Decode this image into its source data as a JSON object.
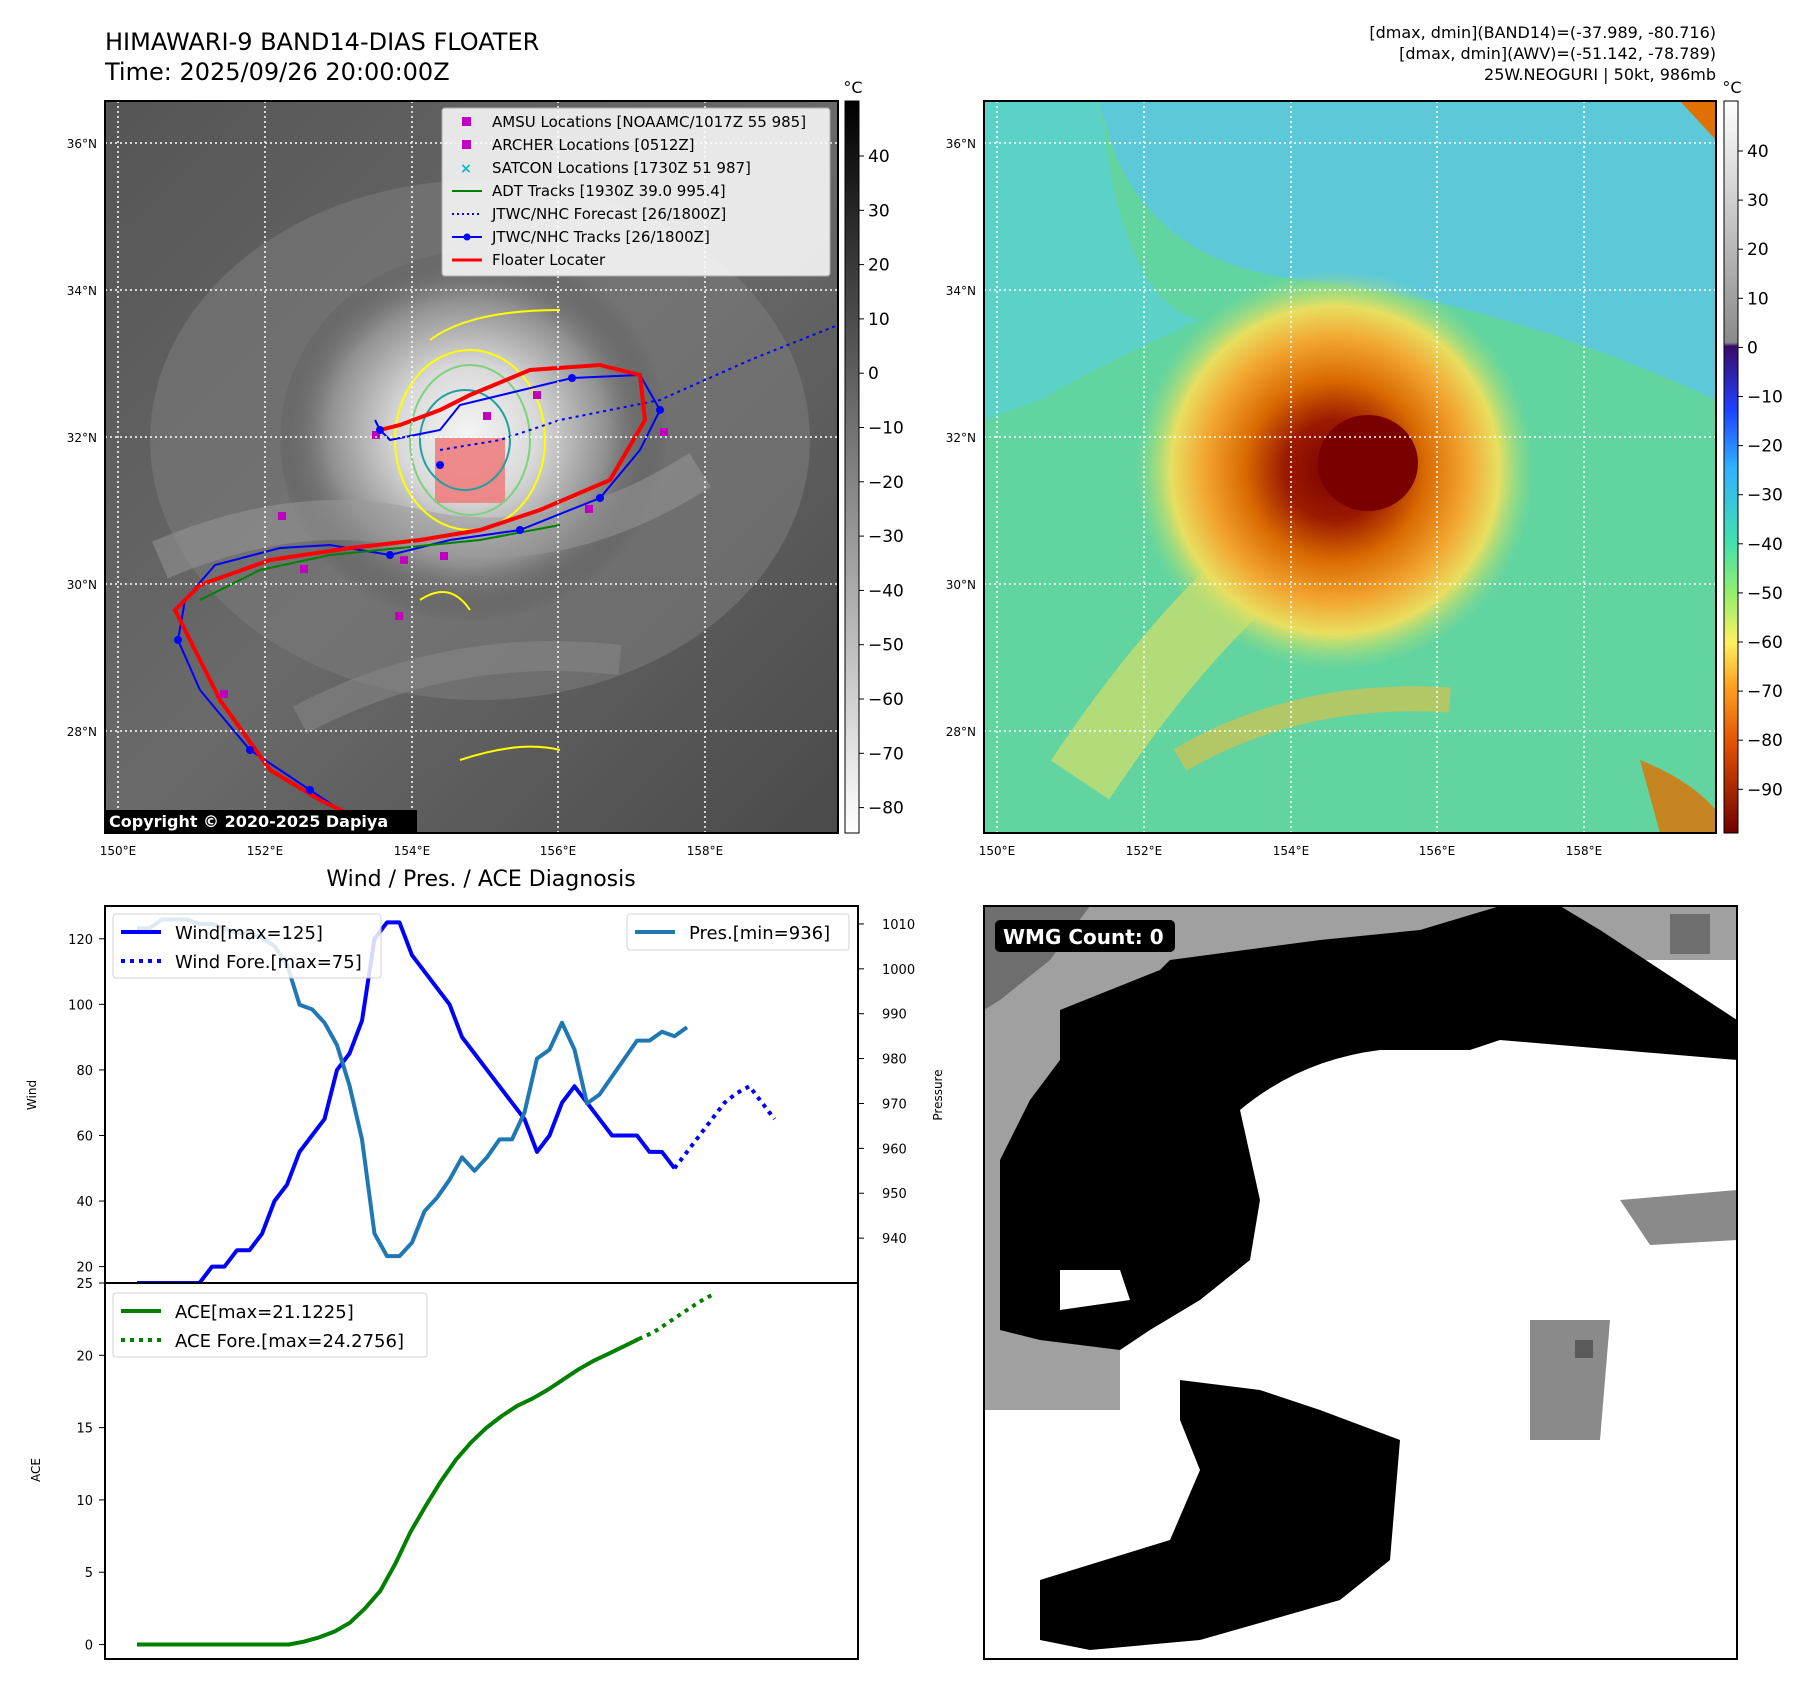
{
  "header": {
    "title": "HIMAWARI-9 BAND14-DIAS FLOATER",
    "time": "Time: 2025/09/26 20:00:00Z",
    "dmax_band14": "[dmax, dmin](BAND14)=(-37.989, -80.716)",
    "dmax_awv": "[dmax, dmin](AWV)=(-51.142, -78.789)",
    "storm": "25W.NEOGURI | 50kt, 986mb"
  },
  "map": {
    "lat_ticks": [
      "36°N",
      "34°N",
      "32°N",
      "30°N",
      "28°N"
    ],
    "lon_ticks": [
      "150°E",
      "152°E",
      "154°E",
      "156°E",
      "158°E"
    ],
    "copyright": "Copyright © 2020-2025 Dapiya",
    "legend": [
      {
        "label": "AMSU Locations [NOAAMC/1017Z 55 985]",
        "color": "#bf00bf",
        "marker": "square"
      },
      {
        "label": "ARCHER Locations [0512Z]",
        "color": "#bf00bf",
        "marker": "square"
      },
      {
        "label": "SATCON Locations [1730Z 51 987]",
        "color": "#00bfbf",
        "marker": "x"
      },
      {
        "label": "ADT Tracks [1930Z 39.0 995.4]",
        "color": "#008000",
        "marker": "line"
      },
      {
        "label": "JTWC/NHC Forecast [26/1800Z]",
        "color": "#0000ff",
        "marker": "dotted"
      },
      {
        "label": "JTWC/NHC Tracks [26/1800Z]",
        "color": "#0000ff",
        "marker": "line-dot"
      },
      {
        "label": "Floater Locater",
        "color": "#ff0000",
        "marker": "line"
      }
    ]
  },
  "colorbar_gray": {
    "unit": "°C",
    "ticks": [
      "40",
      "30",
      "20",
      "10",
      "0",
      "−10",
      "−20",
      "−30",
      "−40",
      "−50",
      "−60",
      "−70",
      "−80"
    ]
  },
  "colorbar_color": {
    "unit": "°C",
    "ticks": [
      "40",
      "30",
      "20",
      "10",
      "0",
      "−10",
      "−20",
      "−30",
      "−40",
      "−50",
      "−60",
      "−70",
      "−80",
      "−90"
    ]
  },
  "wmg": {
    "label": "WMG Count: 0"
  },
  "chart_data": [
    {
      "type": "line",
      "title": "Wind / Pres. / ACE Diagnosis",
      "ylabel": "Wind",
      "ylabel_right": "Pressure",
      "ylim": [
        15,
        130
      ],
      "ylim_right": [
        930,
        1014
      ],
      "yticks": [
        20,
        40,
        60,
        80,
        100,
        120
      ],
      "yticks_right": [
        940,
        950,
        960,
        970,
        980,
        990,
        1000,
        1010
      ],
      "series": [
        {
          "name": "Wind[max=125]",
          "color": "#0000ff",
          "style": "solid",
          "axis": "left",
          "values": [
            15,
            15,
            15,
            15,
            15,
            15,
            20,
            20,
            25,
            25,
            30,
            40,
            45,
            55,
            60,
            65,
            80,
            85,
            95,
            120,
            125,
            125,
            115,
            110,
            105,
            100,
            90,
            85,
            80,
            75,
            70,
            65,
            55,
            60,
            70,
            75,
            70,
            65,
            60,
            60,
            60,
            55,
            55,
            50
          ]
        },
        {
          "name": "Wind Fore.[max=75]",
          "color": "#0000ff",
          "style": "dotted",
          "axis": "left",
          "x_start": 43,
          "values": [
            50,
            55,
            60,
            65,
            70,
            73,
            75,
            70,
            65
          ]
        },
        {
          "name": "Pres.[min=936]",
          "color": "#1f77b4",
          "style": "solid",
          "axis": "right",
          "values": [
            1009,
            1009,
            1011,
            1011,
            1011,
            1010,
            1010,
            1009,
            1008,
            1008,
            1007,
            1005,
            1001,
            992,
            991,
            988,
            983,
            974,
            962,
            941,
            936,
            936,
            939,
            946,
            949,
            953,
            958,
            955,
            958,
            962,
            962,
            968,
            980,
            982,
            988,
            982,
            970,
            972,
            976,
            980,
            984,
            984,
            986,
            985,
            987
          ]
        }
      ]
    },
    {
      "type": "line",
      "ylabel": "ACE",
      "ylim": [
        -1,
        25
      ],
      "yticks": [
        0,
        5,
        10,
        15,
        20,
        25
      ],
      "series": [
        {
          "name": "ACE[max=21.1225]",
          "color": "#008000",
          "style": "solid",
          "values": [
            0,
            0,
            0,
            0,
            0,
            0,
            0,
            0,
            0,
            0,
            0,
            0.2,
            0.5,
            0.9,
            1.5,
            2.5,
            3.7,
            5.6,
            7.8,
            9.6,
            11.3,
            12.8,
            14.0,
            15.0,
            15.8,
            16.5,
            17.0,
            17.6,
            18.3,
            19.0,
            19.6,
            20.1,
            20.6,
            21.1225
          ]
        },
        {
          "name": "ACE Fore.[max=24.2756]",
          "color": "#008000",
          "style": "dotted",
          "x_start": 33,
          "values": [
            21.1225,
            21.6,
            22.3,
            23.0,
            23.7,
            24.2756
          ]
        }
      ]
    }
  ]
}
